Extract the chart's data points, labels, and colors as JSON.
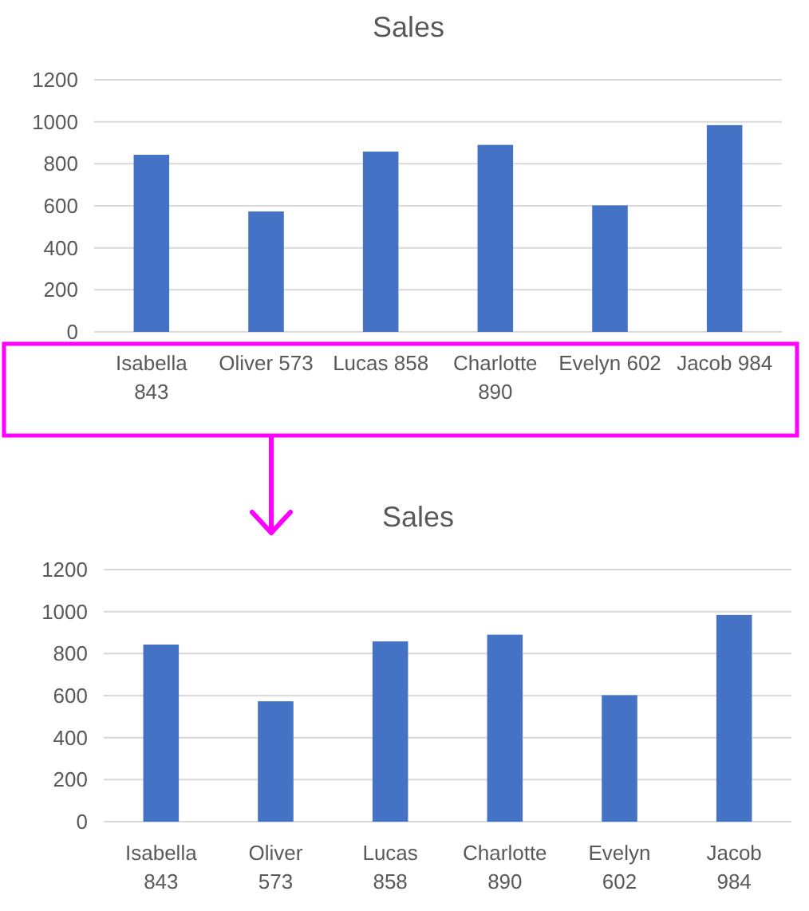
{
  "chart_data": [
    {
      "type": "bar",
      "title": "Sales",
      "categories": [
        "Isabella 843",
        "Oliver 573",
        "Lucas 858",
        "Charlotte 890",
        "Evelyn 602",
        "Jacob 984"
      ],
      "values": [
        843,
        573,
        858,
        890,
        602,
        984
      ],
      "color": "#4472c4",
      "ylim": [
        0,
        1200
      ],
      "yticks": [
        0,
        200,
        400,
        600,
        800,
        1000,
        1200
      ],
      "grid": "y"
    },
    {
      "type": "bar",
      "title": "Sales",
      "categories": [
        "Isabella\n843",
        "Oliver\n573",
        "Lucas\n858",
        "Charlotte\n890",
        "Evelyn\n602",
        "Jacob\n984"
      ],
      "values": [
        843,
        573,
        858,
        890,
        602,
        984
      ],
      "color": "#4472c4",
      "ylim": [
        0,
        1200
      ],
      "yticks": [
        0,
        200,
        400,
        600,
        800,
        1000,
        1200
      ],
      "grid": "y"
    }
  ]
}
